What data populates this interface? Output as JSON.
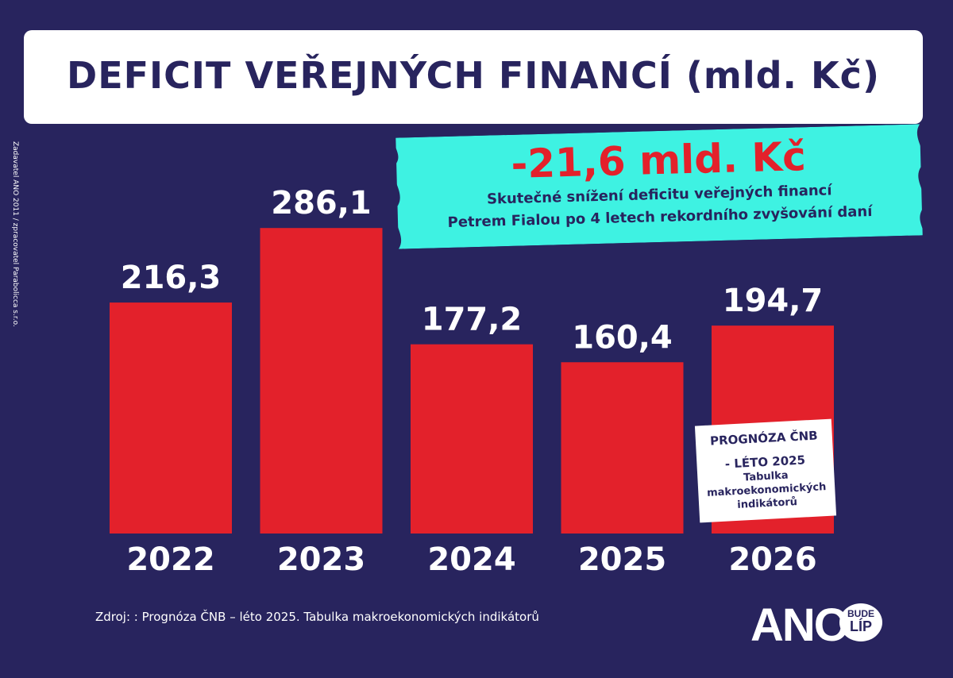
{
  "title": "DEFICIT VEŘEJNÝCH FINANCÍ (mld. Kč)",
  "highlight": {
    "value": "-21,6 mld. Kč",
    "line1": "Skutečné snížení deficitu veřejných financí",
    "line2": "Petrem Fialou po 4 letech rekordního zvyšování daní"
  },
  "side_note": "Zadavatel ANO 2011 / zpracovatel Parabolicca s.r.o.",
  "forecast_box": {
    "line1": "PROGNÓZA ČNB",
    "line2": "- LÉTO 2025",
    "line3": "Tabulka",
    "line4": "makroekonomických",
    "line5": "indikátorů"
  },
  "source": "Zdroj: : Prognóza ČNB – léto 2025. Tabulka makroekonomických indikátorů",
  "logo": {
    "main": "ANO",
    "bubble_top": "BUDE",
    "bubble_bottom": "LÍP"
  },
  "colors": {
    "background": "#28245e",
    "bar": "#e3212b",
    "ribbon": "#3ef2e2",
    "text": "#ffffff"
  },
  "chart_data": {
    "type": "bar",
    "categories": [
      "2022",
      "2023",
      "2024",
      "2025",
      "2026"
    ],
    "values": [
      216.3,
      286.1,
      177.2,
      160.4,
      194.7
    ],
    "value_labels": [
      "216,3",
      "286,1",
      "177,2",
      "160,4",
      "194,7"
    ],
    "title": "DEFICIT VEŘEJNÝCH FINANCÍ (mld. Kč)",
    "xlabel": "",
    "ylabel": "",
    "grid": false,
    "legend": "none"
  }
}
